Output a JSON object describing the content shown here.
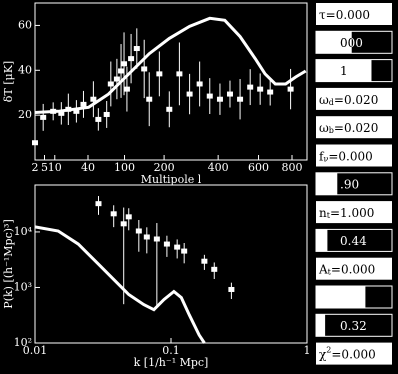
{
  "chart_data": [
    {
      "type": "errorbar",
      "xlabel": "Multipole l",
      "ylabel": "δT [μK]",
      "xscale": "power",
      "color": "#ffffff",
      "xlim": [
        2,
        900
      ],
      "ylim": [
        0,
        70
      ],
      "xticks": [
        2,
        5,
        10,
        40,
        100,
        200,
        400,
        600,
        800
      ],
      "yticks": [
        20,
        40,
        60
      ],
      "points": {
        "x": [
          2,
          4.5,
          9.1,
          14.2,
          19.6,
          27,
          34.6,
          47,
          54,
          67,
          74,
          85,
          93,
          99,
          105,
          114,
          127,
          145,
          158,
          186,
          216,
          249,
          285,
          323,
          364,
          408,
          454,
          503,
          555,
          609,
          666,
          791
        ],
        "values": [
          7.7,
          19.0,
          21.7,
          20.8,
          22.6,
          21.7,
          24.8,
          27.1,
          18.1,
          20.3,
          33.9,
          36.1,
          39.7,
          42.9,
          31.6,
          45.2,
          49.7,
          40.6,
          27.1,
          38.4,
          22.6,
          38.4,
          29.4,
          33.9,
          28.5,
          27.1,
          29.4,
          27.1,
          32.5,
          31.6,
          30.3,
          31.6
        ],
        "errors": [
          5,
          6,
          4,
          5,
          7,
          5,
          6,
          8,
          5,
          6,
          10,
          9,
          12,
          14,
          10,
          11,
          9,
          13,
          12,
          10,
          8,
          14,
          9,
          10,
          8,
          7,
          6,
          9,
          8,
          7,
          6,
          9
        ]
      },
      "curve": {
        "x": [
          2,
          12.1,
          40.7,
          70,
          109,
          158,
          216,
          285,
          364,
          430,
          503,
          582,
          637,
          696,
          759,
          824,
          891
        ],
        "values": [
          21.2,
          21.7,
          23.5,
          29.4,
          38.4,
          47.4,
          54.2,
          59.6,
          63.2,
          62.3,
          55,
          45.2,
          38.4,
          33.9,
          33.9,
          37,
          39.7
        ]
      }
    },
    {
      "type": "errorbar",
      "xlabel": "k [1/h⁻¹ Mpc]",
      "ylabel": "P(k) [(h⁻¹Mpc)³]",
      "xscale": "log",
      "yscale": "log",
      "color": "#ffffff",
      "xlim": [
        0.01,
        1
      ],
      "ylim": [
        100,
        70000
      ],
      "xticks": [
        0.01,
        0.1,
        1
      ],
      "yticks": [
        {
          "value": 100,
          "label": "10²"
        },
        {
          "value": 1000,
          "label": "10³"
        },
        {
          "value": 10000,
          "label": "10⁴"
        }
      ],
      "points": {
        "x": [
          0.0293,
          0.0379,
          0.0449,
          0.0489,
          0.058,
          0.0664,
          0.0787,
          0.0933,
          0.111,
          0.125,
          0.176,
          0.208,
          0.278
        ],
        "values": [
          32300,
          21200,
          14000,
          18700,
          10400,
          8110,
          7460,
          6050,
          5330,
          4520,
          2970,
          2120,
          920
        ],
        "errors": [
          12000,
          9000,
          13500,
          8000,
          6000,
          4000,
          7000,
          2500,
          2000,
          1800,
          900,
          700,
          300
        ]
      },
      "curve": {
        "x": [
          0.01,
          0.0148,
          0.0208,
          0.0293,
          0.0379,
          0.0489,
          0.0631,
          0.0748,
          0.0887,
          0.105,
          0.119,
          0.136,
          0.161,
          0.176
        ],
        "values": [
          12300,
          10400,
          6050,
          2620,
          1400,
          746,
          491,
          398,
          605,
          846,
          658,
          323,
          140,
          100
        ]
      }
    }
  ],
  "controls": [
    {
      "text": "τ=0.000"
    },
    {
      "level": 0.47,
      "text": "000"
    },
    {
      "level": 0.73,
      "text": "1"
    },
    {
      "text": "ω",
      "sub": "d",
      "rest": "=0.020"
    },
    {
      "text": "ω",
      "sub": "b",
      "rest": "=0.020"
    },
    {
      "text": "f",
      "sub": "ν",
      "rest": "=0.000"
    },
    {
      "level": 0.28,
      "text": ".90"
    },
    {
      "text": "n",
      "sub": "t",
      "rest": "=1.000"
    },
    {
      "level": 0.15,
      "text": "0.44"
    },
    {
      "text": "A",
      "sub": "t",
      "rest": "=0.000"
    },
    {
      "level": 0.65
    },
    {
      "level": 0.12,
      "text": "0.32"
    },
    {
      "text": "χ",
      "sup": "2",
      "rest": "=0.000"
    }
  ]
}
